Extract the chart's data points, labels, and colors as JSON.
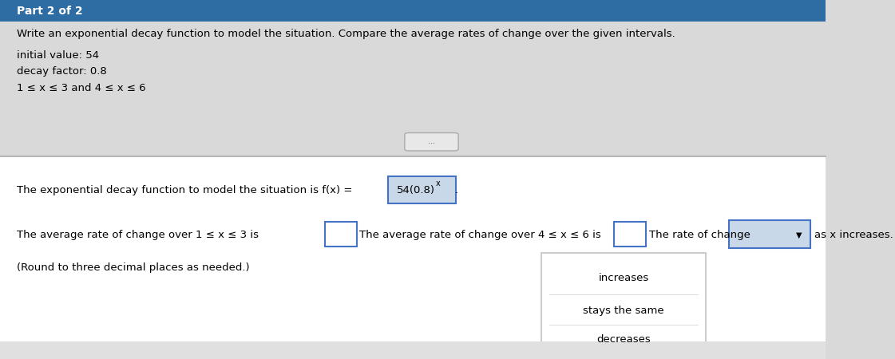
{
  "title_bar_color": "#2e6da4",
  "title_bar_text": "Part 2 of 2",
  "bg_color": "#d9d9d9",
  "white_panel_color": "#ffffff",
  "header_text": "Write an exponential decay function to model the situation. Compare the average rates of change over the given intervals.",
  "initial_value_label": "initial value: 54",
  "decay_factor_label": "decay factor: 0.8",
  "interval_label": "1 ≤ x ≤ 3 and 4 ≤ x ≤ 6",
  "divider_dots": "...",
  "function_text_prefix": "The exponential decay function to model the situation is f(x) = ",
  "function_formula": "54(0.8)",
  "function_exponent": "x",
  "avg_rate_line1_prefix": "The average rate of change over 1 ≤ x ≤ 3 is",
  "avg_rate_line1_middle": "The average rate of change over 4 ≤ x ≤ 6 is",
  "avg_rate_line1_suffix": "The rate of change",
  "as_x_increases": "as x increases.",
  "round_note": "(Round to three decimal places as needed.)",
  "dropdown_options": [
    "increases",
    "stays the same",
    "decreases"
  ],
  "dropdown_box_color": "#c8d8e8",
  "dropdown_border_color": "#4472c4",
  "formula_highlight_color": "#c8d8e8",
  "formula_highlight_border": "#4472c4",
  "input_box_color": "#ffffff",
  "input_box_border": "#4472c4",
  "divider_color": "#aaaaaa",
  "popup_border_color": "#cccccc",
  "sep_color": "#dddddd",
  "nav_bar_color": "#e0e0e0"
}
